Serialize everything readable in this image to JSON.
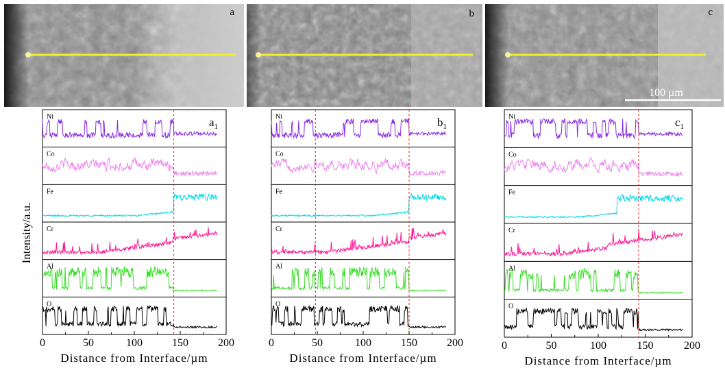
{
  "y_axis_label": "Intensity/a.u.",
  "colors": {
    "Ni": "#8a2be2",
    "Co": "#ee82ee",
    "Fe": "#00d8e8",
    "Cr": "#ff1493",
    "Al": "#33dd22",
    "O": "#000000",
    "scan_line": "#f2ef2a",
    "marker_line": "#e8261e"
  },
  "micrographs": [
    {
      "label": "a"
    },
    {
      "label": "b"
    },
    {
      "label": "c",
      "scale_bar": "100 µm"
    }
  ],
  "chart_data": [
    {
      "type": "line",
      "panel_label": "a1",
      "panel_letter": "a",
      "panel_sub": "1",
      "xlabel": "Distance from Interface/µm",
      "ylabel": "Intensity/a.u.",
      "xlim": [
        0,
        200
      ],
      "x_ticks": [
        "0",
        "50",
        "100",
        "150",
        "200"
      ],
      "interface_markers_um": [
        143
      ],
      "series": [
        {
          "name": "Ni",
          "regime": "high_low_switch",
          "switch_um": 143
        },
        {
          "name": "Co",
          "regime": "noisy_high_then_lower",
          "switch_um": 143
        },
        {
          "name": "Fe",
          "regime": "low_then_step_up",
          "switch_um": 143
        },
        {
          "name": "Cr",
          "regime": "rising",
          "switch_um": 143
        },
        {
          "name": "Al",
          "regime": "spiky_then_flat",
          "switch_um": 143
        },
        {
          "name": "O",
          "regime": "high_then_drop",
          "switch_um": 143
        }
      ]
    },
    {
      "type": "line",
      "panel_label": "b1",
      "panel_letter": "b",
      "panel_sub": "1",
      "xlabel": "Distance from Interface/µm",
      "ylabel": "Intensity/a.u.",
      "xlim": [
        0,
        200
      ],
      "x_ticks": [
        "0",
        "50",
        "100",
        "150",
        "200"
      ],
      "interface_markers_um": [
        48,
        150
      ],
      "series": [
        {
          "name": "Ni",
          "regime": "high_low_switch",
          "switch_um": 150
        },
        {
          "name": "Co",
          "regime": "noisy_high_then_lower",
          "switch_um": 150
        },
        {
          "name": "Fe",
          "regime": "low_then_step_up",
          "switch_um": 150
        },
        {
          "name": "Cr",
          "regime": "rising",
          "switch_um": 150
        },
        {
          "name": "Al",
          "regime": "spiky_then_flat",
          "switch_um": 150
        },
        {
          "name": "O",
          "regime": "high_then_drop",
          "switch_um": 150
        }
      ]
    },
    {
      "type": "line",
      "panel_label": "c1",
      "panel_letter": "c",
      "panel_sub": "1",
      "xlabel": "Distance from Interface/µm",
      "ylabel": "Intensity/a.u.",
      "xlim": [
        0,
        200
      ],
      "x_ticks": [
        "0",
        "50",
        "100",
        "150",
        "200"
      ],
      "interface_markers_um": [
        143
      ],
      "series": [
        {
          "name": "Ni",
          "regime": "high_low_switch",
          "switch_um": 143
        },
        {
          "name": "Co",
          "regime": "noisy_high_then_lower",
          "switch_um": 143
        },
        {
          "name": "Fe",
          "regime": "low_then_step_up",
          "switch_um": 120
        },
        {
          "name": "Cr",
          "regime": "rising",
          "switch_um": 110
        },
        {
          "name": "Al",
          "regime": "spiky_then_flat",
          "switch_um": 143
        },
        {
          "name": "O",
          "regime": "high_then_drop",
          "switch_um": 143
        }
      ]
    }
  ]
}
